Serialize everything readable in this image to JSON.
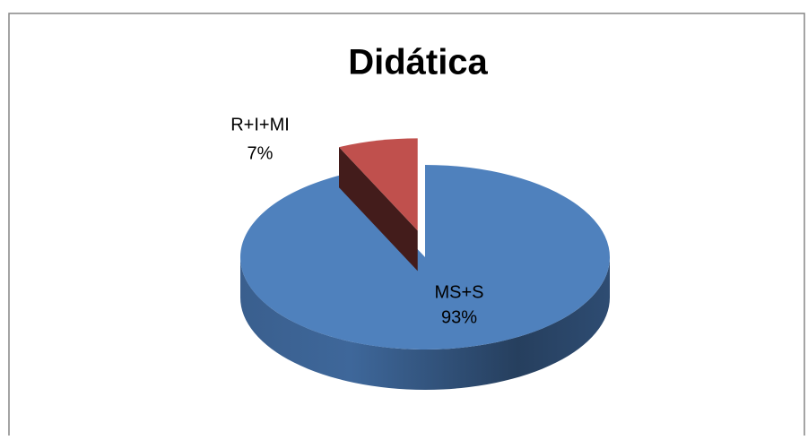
{
  "chart_data": {
    "type": "pie",
    "title": "Didática",
    "categories": [
      "MS+S",
      "R+I+MI"
    ],
    "values": [
      93,
      7
    ],
    "value_labels": [
      "93%",
      "7%"
    ],
    "colors": [
      "#4f81bd",
      "#c0504d"
    ]
  }
}
